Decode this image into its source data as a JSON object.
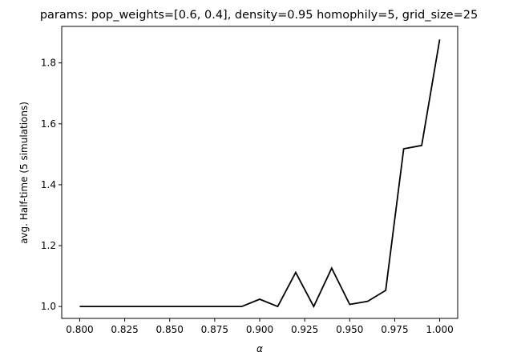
{
  "chart_data": {
    "type": "line",
    "title": "params: pop_weights=[0.6, 0.4], density=0.95 homophily=5, grid_size=25",
    "xlabel": "α",
    "ylabel": "avg. Half-time (5 simulations)",
    "xlim": [
      0.79,
      1.01
    ],
    "ylim": [
      0.961,
      1.92
    ],
    "xticks": [
      0.8,
      0.825,
      0.85,
      0.875,
      0.9,
      0.925,
      0.95,
      0.975,
      1.0
    ],
    "xtick_labels": [
      "0.800",
      "0.825",
      "0.850",
      "0.875",
      "0.900",
      "0.925",
      "0.950",
      "0.975",
      "1.000"
    ],
    "yticks": [
      1.0,
      1.2,
      1.4,
      1.6,
      1.8
    ],
    "ytick_labels": [
      "1.0",
      "1.2",
      "1.4",
      "1.6",
      "1.8"
    ],
    "grid": false,
    "series": [
      {
        "color": "#000000",
        "x": [
          0.8,
          0.81,
          0.82,
          0.83,
          0.84,
          0.85,
          0.86,
          0.87,
          0.88,
          0.89,
          0.9,
          0.91,
          0.92,
          0.93,
          0.94,
          0.95,
          0.96,
          0.97,
          0.98,
          0.99,
          1.0
        ],
        "y": [
          1.0,
          1.0,
          1.0,
          1.0,
          1.0,
          1.0,
          1.0,
          1.0,
          1.0,
          1.0,
          1.024,
          1.0,
          1.112,
          1.0,
          1.126,
          1.007,
          1.017,
          1.053,
          1.518,
          1.529,
          1.877
        ]
      }
    ]
  }
}
